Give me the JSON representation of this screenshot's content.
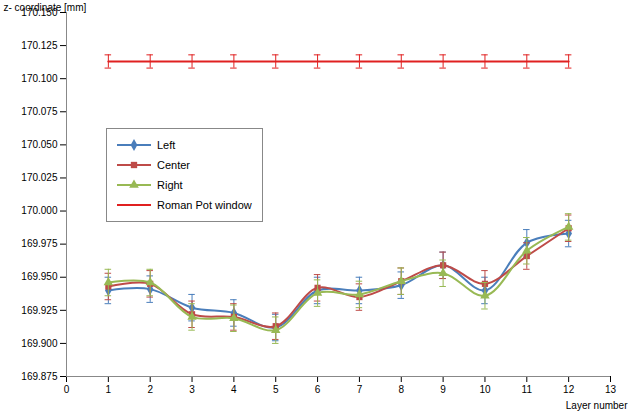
{
  "chart_data": {
    "type": "line",
    "x_label": "Layer number",
    "y_label": "z- coordinate [mm]",
    "xlim": [
      0,
      13
    ],
    "xticks": [
      0,
      1,
      2,
      3,
      4,
      5,
      6,
      7,
      8,
      9,
      10,
      11,
      12,
      13
    ],
    "ylim": [
      169.875,
      170.15
    ],
    "yticks": [
      169.875,
      {
        "value": 169.9,
        "label": "169.900"
      },
      169.925,
      {
        "value": 169.95,
        "label": "169.950"
      },
      169.975,
      {
        "value": 170,
        "label": "170.000"
      },
      170.025,
      {
        "value": 170.05,
        "label": "170.050"
      },
      170.075,
      {
        "value": 170.1,
        "label": "170.100"
      },
      170.125,
      {
        "value": 170.15,
        "label": "170.150"
      }
    ],
    "grid": false,
    "legend": "left",
    "x": [
      1,
      2,
      3,
      4,
      5,
      6,
      7,
      8,
      9,
      10,
      11,
      12
    ],
    "series": [
      {
        "name": "Left",
        "color": "#4a7ebb",
        "marker": "diamond",
        "line_style": "solid",
        "values": [
          169.94,
          169.941,
          169.927,
          169.923,
          169.912,
          169.94,
          169.94,
          169.944,
          169.959,
          169.94,
          169.976,
          169.983
        ],
        "errors": [
          0.01,
          0.01,
          0.01,
          0.01,
          0.01,
          0.01,
          0.01,
          0.01,
          0.01,
          0.01,
          0.01,
          0.01
        ]
      },
      {
        "name": "Center",
        "color": "#be4b48",
        "marker": "square",
        "line_style": "solid",
        "values": [
          169.943,
          169.945,
          169.922,
          169.92,
          169.913,
          169.942,
          169.935,
          169.947,
          169.959,
          169.945,
          169.966,
          169.987
        ],
        "errors": [
          0.01,
          0.01,
          0.01,
          0.01,
          0.01,
          0.01,
          0.01,
          0.01,
          0.01,
          0.01,
          0.01,
          0.01
        ]
      },
      {
        "name": "Right",
        "color": "#98b954",
        "marker": "triangle",
        "line_style": "solid",
        "values": [
          169.946,
          169.946,
          169.92,
          169.919,
          169.91,
          169.938,
          169.937,
          169.947,
          169.953,
          169.936,
          169.97,
          169.988
        ],
        "errors": [
          0.01,
          0.01,
          0.01,
          0.01,
          0.01,
          0.01,
          0.01,
          0.01,
          0.01,
          0.01,
          0.01,
          0.01
        ]
      },
      {
        "name": "Roman Pot window",
        "color": "#e02020",
        "marker": "none",
        "line_style": "solid",
        "values": [
          170.113,
          170.113,
          170.113,
          170.113,
          170.113,
          170.113,
          170.113,
          170.113,
          170.113,
          170.113,
          170.113,
          170.113
        ],
        "errors": [
          0.005,
          0.005,
          0.005,
          0.005,
          0.005,
          0.005,
          0.005,
          0.005,
          0.005,
          0.005,
          0.005,
          0.005
        ]
      }
    ]
  }
}
